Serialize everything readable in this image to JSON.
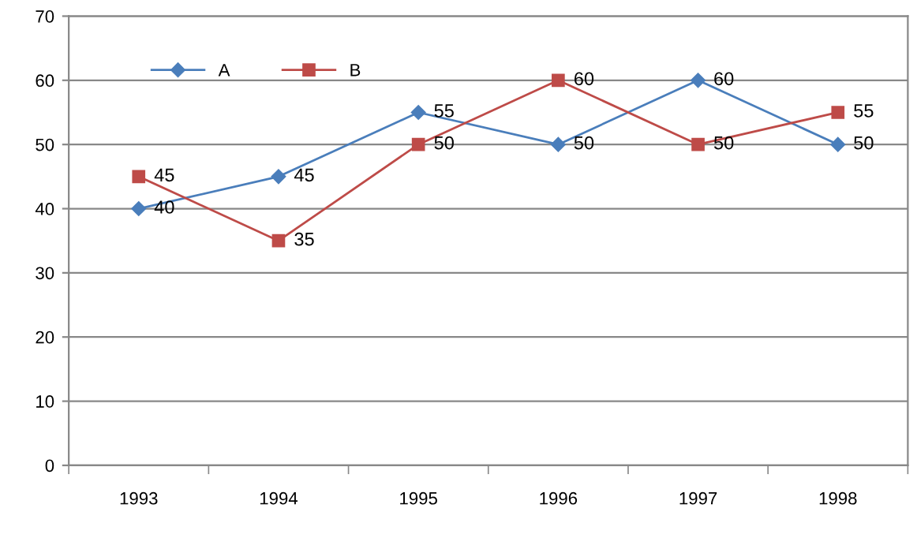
{
  "chart_data": {
    "type": "line",
    "categories": [
      "1993",
      "1994",
      "1995",
      "1996",
      "1997",
      "1998"
    ],
    "series": [
      {
        "name": "A",
        "color": "#4a7ebb",
        "marker": "diamond",
        "values": [
          40,
          45,
          55,
          50,
          60,
          50
        ]
      },
      {
        "name": "B",
        "color": "#be4b48",
        "marker": "square",
        "values": [
          45,
          35,
          50,
          60,
          50,
          55
        ]
      }
    ],
    "ylim": [
      0,
      70
    ],
    "yticks": [
      0,
      10,
      20,
      30,
      40,
      50,
      60,
      70
    ],
    "grid": "y",
    "legend": "top left",
    "data_labels": true,
    "line_style": "solid"
  }
}
